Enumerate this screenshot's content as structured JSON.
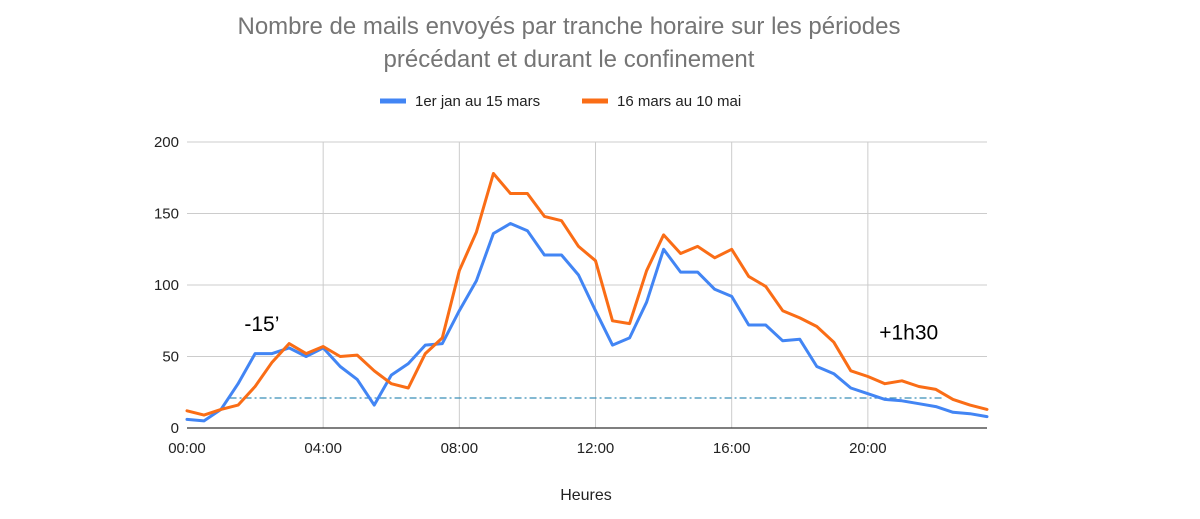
{
  "chart_data": {
    "type": "line",
    "title_lines": [
      "Nombre de mails envoyés par tranche horaire sur les périodes",
      "précédant et durant le confinement"
    ],
    "xlabel": "Heures",
    "ylabel": "",
    "x_tick_labels": [
      "00:00",
      "04:00",
      "08:00",
      "12:00",
      "16:00",
      "20:00"
    ],
    "x_tick_hours": [
      0,
      4,
      8,
      12,
      16,
      20
    ],
    "xlim_hours": [
      0,
      23.5
    ],
    "ylim": [
      0,
      200
    ],
    "y_ticks": [
      0,
      50,
      100,
      150,
      200
    ],
    "grid": true,
    "legend_position": "top-center",
    "x_hours": [
      0,
      0.5,
      1,
      1.5,
      2,
      2.5,
      3,
      3.5,
      4,
      4.5,
      5,
      5.5,
      6,
      6.5,
      7,
      7.5,
      8,
      8.5,
      9,
      9.5,
      10,
      10.5,
      11,
      11.5,
      12,
      12.5,
      13,
      13.5,
      14,
      14.5,
      15,
      15.5,
      16,
      16.5,
      17,
      17.5,
      18,
      18.5,
      19,
      19.5,
      20,
      20.5,
      21,
      21.5,
      22,
      22.5,
      23,
      23.5
    ],
    "series": [
      {
        "name": "1er jan au 15 mars",
        "color": "#4285f4",
        "values": [
          6,
          5,
          13,
          31,
          52,
          52,
          56,
          50,
          56,
          43,
          34,
          16,
          37,
          45,
          58,
          59,
          82,
          103,
          136,
          143,
          138,
          121,
          121,
          107,
          82,
          58,
          63,
          88,
          125,
          109,
          109,
          97,
          92,
          72,
          72,
          61,
          62,
          43,
          38,
          28,
          24,
          20,
          19,
          17,
          15,
          11,
          10,
          8
        ]
      },
      {
        "name": "16 mars au 10 mai",
        "color": "#fa6d16",
        "values": [
          12,
          9,
          13,
          16,
          29,
          46,
          59,
          52,
          57,
          50,
          51,
          40,
          31,
          28,
          52,
          63,
          110,
          137,
          178,
          164,
          164,
          148,
          145,
          127,
          117,
          75,
          73,
          110,
          135,
          122,
          127,
          119,
          125,
          106,
          99,
          82,
          77,
          71,
          60,
          40,
          36,
          31,
          33,
          29,
          27,
          20,
          16,
          13
        ]
      }
    ],
    "reference_line": {
      "y": 21,
      "color": "#3a8fb7",
      "x_start_hours": 1.25,
      "x_end_hours": 22.2
    },
    "annotations": [
      {
        "text": "-15’",
        "x_hours": 2.2,
        "y": 68
      },
      {
        "text": "+1h30",
        "x_hours": 21.2,
        "y": 62
      }
    ]
  }
}
